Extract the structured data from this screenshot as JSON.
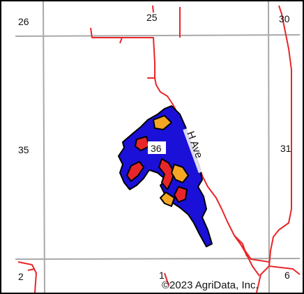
{
  "map": {
    "section_labels": [
      "26",
      "25",
      "30",
      "35",
      "36",
      "31",
      "2",
      "1",
      "6"
    ],
    "road_label": "H Ave",
    "copyright": "©2023 AgriData, Inc.",
    "colors": {
      "grid_line": "#a9a9a9",
      "road": "#e8262a",
      "field_blue": "#1a10d8",
      "field_red": "#e8262a",
      "field_orange": "#f5a623",
      "outline": "#000000"
    }
  }
}
